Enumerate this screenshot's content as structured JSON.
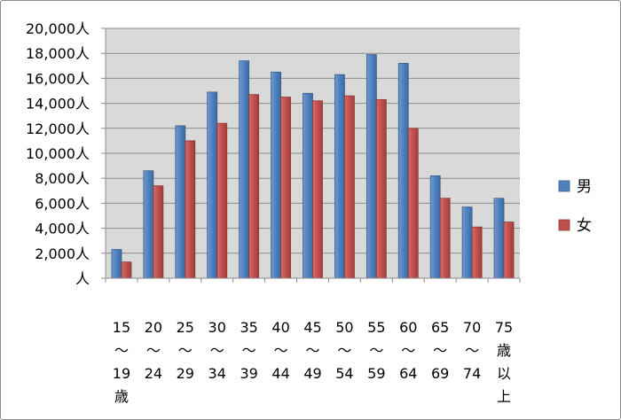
{
  "chart_data": {
    "type": "bar",
    "title": "",
    "xlabel": "",
    "ylabel": "",
    "ylim": [
      0,
      20000
    ],
    "yticks": [
      "人",
      "2,000人",
      "4,000人",
      "6,000人",
      "8,000人",
      "10,000人",
      "12,000人",
      "14,000人",
      "16,000人",
      "18,000人",
      "20,000人"
    ],
    "grid": true,
    "legend_position": "right",
    "categories": [
      [
        "15",
        "～",
        "19",
        "歳"
      ],
      [
        "20",
        "～",
        "24"
      ],
      [
        "25",
        "～",
        "29"
      ],
      [
        "30",
        "～",
        "34"
      ],
      [
        "35",
        "～",
        "39"
      ],
      [
        "40",
        "～",
        "44"
      ],
      [
        "45",
        "～",
        "49"
      ],
      [
        "50",
        "～",
        "54"
      ],
      [
        "55",
        "～",
        "59"
      ],
      [
        "60",
        "～",
        "64"
      ],
      [
        "65",
        "～",
        "69"
      ],
      [
        "70",
        "～",
        "74"
      ],
      [
        "75",
        "歳",
        "以",
        "上"
      ]
    ],
    "series": [
      {
        "name": "男",
        "color": "#4f81bd",
        "values": [
          2300,
          8600,
          12200,
          14900,
          17400,
          16500,
          14800,
          16300,
          17900,
          17200,
          8200,
          5700,
          6400
        ]
      },
      {
        "name": "女",
        "color": "#c0504d",
        "values": [
          1300,
          7400,
          11000,
          12400,
          14700,
          14500,
          14200,
          14600,
          14300,
          12000,
          6400,
          4100,
          4500
        ]
      }
    ]
  }
}
